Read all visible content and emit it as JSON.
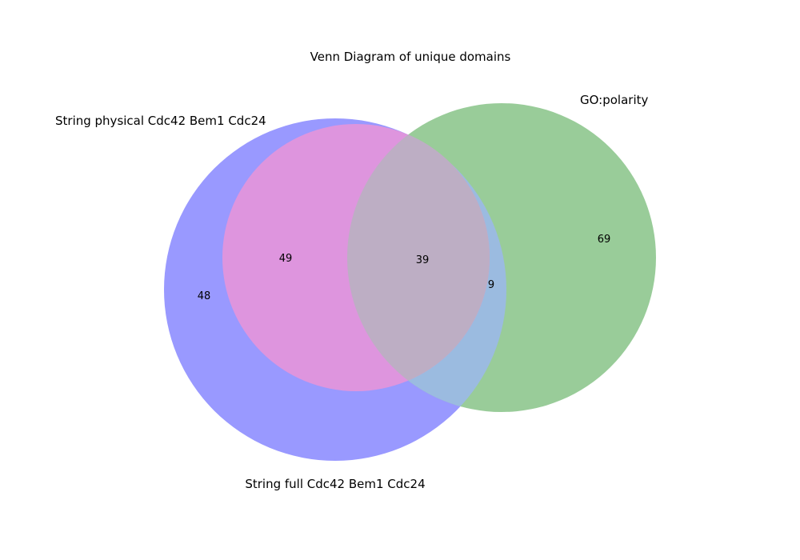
{
  "figure": {
    "title": "Venn Diagram of unique domains"
  },
  "chart_data": {
    "type": "venn",
    "sets": [
      {
        "id": "A",
        "label": "String full Cdc42 Bem1 Cdc24",
        "color": "#9999ff"
      },
      {
        "id": "B",
        "label": "String physical Cdc42 Bem1 Cdc24",
        "color": "#de95de"
      },
      {
        "id": "C",
        "label": "GO:polarity",
        "color": "#99cc99"
      }
    ],
    "regions": {
      "A_only": "48",
      "A_B": "49",
      "A_B_C": "39",
      "A_C": "9",
      "C_only": "69"
    },
    "overlap_colors": {
      "A_C": "#9bbbe0",
      "A_B_C": "#bdaec4"
    }
  }
}
